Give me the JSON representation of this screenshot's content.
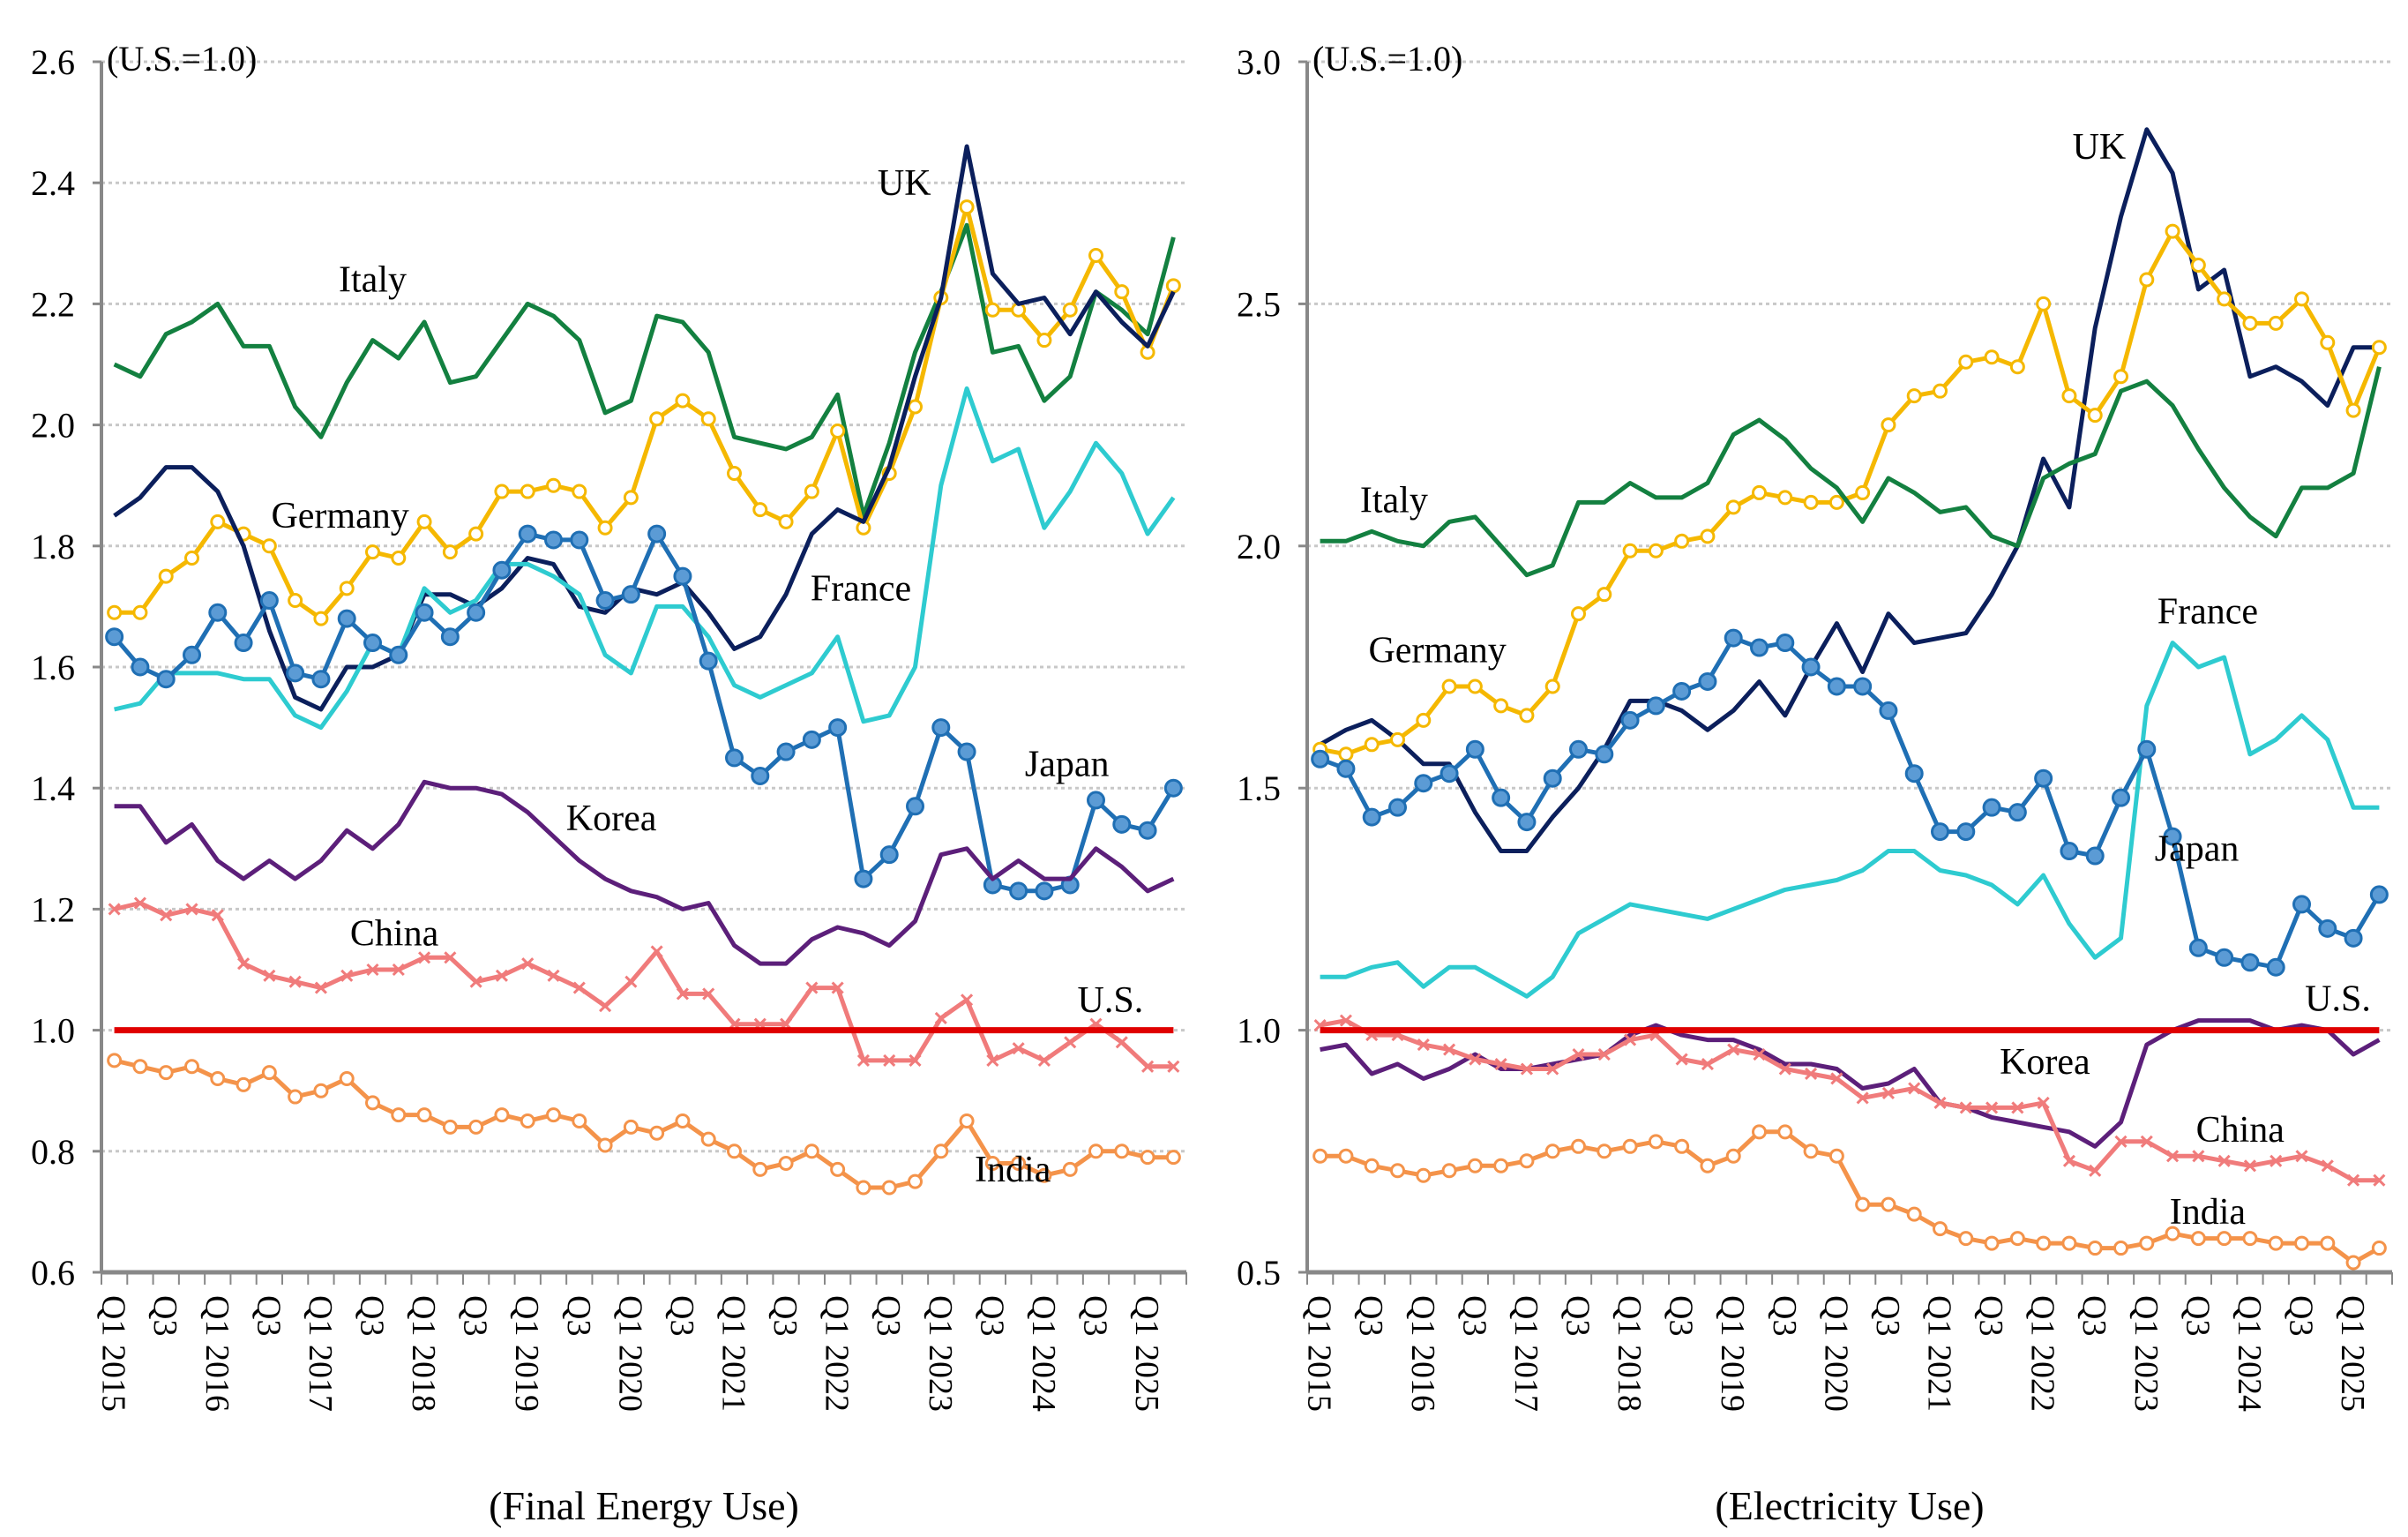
{
  "chart_data": [
    {
      "type": "line",
      "caption": "(Final Energy Use)",
      "unit_note": "(U.S.=1.0)",
      "ylim": [
        0.6,
        2.6
      ],
      "yticks": [
        "0.6",
        "0.8",
        "1.0",
        "1.2",
        "1.4",
        "1.6",
        "1.8",
        "2.0",
        "2.2",
        "2.4",
        "2.6"
      ],
      "grid": true,
      "x_tick_labels": [
        "Q1 2015",
        "Q3",
        "Q1 2016",
        "Q3",
        "Q1 2017",
        "Q3",
        "Q1 2018",
        "Q3",
        "Q1 2019",
        "Q3",
        "Q1 2020",
        "Q3",
        "Q1 2021",
        "Q3",
        "Q1 2022",
        "Q3",
        "Q1 2023",
        "Q3",
        "Q1 2024",
        "Q3",
        "Q1 2025"
      ],
      "n_points": 42,
      "series": [
        {
          "name": "Italy",
          "color": "#138040",
          "marker": "none",
          "label_pos": [
            0.25,
            2.22
          ],
          "values": [
            2.1,
            2.08,
            2.15,
            2.17,
            2.2,
            2.13,
            2.13,
            2.03,
            1.98,
            2.07,
            2.14,
            2.11,
            2.17,
            2.07,
            2.08,
            2.14,
            2.2,
            2.18,
            2.14,
            2.02,
            2.04,
            2.18,
            2.17,
            2.12,
            1.98,
            1.97,
            1.96,
            1.98,
            2.05,
            1.85,
            1.97,
            2.12,
            2.22,
            2.33,
            2.12,
            2.13,
            2.04,
            2.08,
            2.22,
            2.19,
            2.15,
            2.31
          ]
        },
        {
          "name": "Germany",
          "color": "#f5b800",
          "marker": "open",
          "label_pos": [
            0.22,
            1.83
          ],
          "values": [
            1.69,
            1.69,
            1.75,
            1.78,
            1.84,
            1.82,
            1.8,
            1.71,
            1.68,
            1.73,
            1.79,
            1.78,
            1.84,
            1.79,
            1.82,
            1.89,
            1.89,
            1.9,
            1.89,
            1.83,
            1.88,
            2.01,
            2.04,
            2.01,
            1.92,
            1.86,
            1.84,
            1.89,
            1.99,
            1.83,
            1.92,
            2.03,
            2.21,
            2.36,
            2.19,
            2.19,
            2.14,
            2.19,
            2.28,
            2.22,
            2.12,
            2.23
          ]
        },
        {
          "name": "UK",
          "color": "#0b1f5c",
          "marker": "none",
          "label_pos": [
            0.74,
            2.38
          ],
          "values": [
            1.85,
            1.88,
            1.93,
            1.93,
            1.89,
            1.8,
            1.66,
            1.55,
            1.53,
            1.6,
            1.6,
            1.62,
            1.72,
            1.72,
            1.7,
            1.73,
            1.78,
            1.77,
            1.7,
            1.69,
            1.73,
            1.72,
            1.74,
            1.69,
            1.63,
            1.65,
            1.72,
            1.82,
            1.86,
            1.84,
            1.93,
            2.08,
            2.21,
            2.46,
            2.25,
            2.2,
            2.21,
            2.15,
            2.22,
            2.17,
            2.13,
            2.22
          ]
        },
        {
          "name": "France",
          "color": "#2ecbd0",
          "marker": "none",
          "label_pos": [
            0.7,
            1.71
          ],
          "values": [
            1.53,
            1.54,
            1.59,
            1.59,
            1.59,
            1.58,
            1.58,
            1.52,
            1.5,
            1.56,
            1.64,
            1.62,
            1.73,
            1.69,
            1.71,
            1.77,
            1.77,
            1.75,
            1.72,
            1.62,
            1.59,
            1.7,
            1.7,
            1.65,
            1.57,
            1.55,
            1.57,
            1.59,
            1.65,
            1.51,
            1.52,
            1.6,
            1.9,
            2.06,
            1.94,
            1.96,
            1.83,
            1.89,
            1.97,
            1.92,
            1.82,
            1.88
          ]
        },
        {
          "name": "Japan",
          "color": "#1f6fb4",
          "marker": "filled",
          "label_pos": [
            0.89,
            1.42
          ],
          "values": [
            1.65,
            1.6,
            1.58,
            1.62,
            1.69,
            1.64,
            1.71,
            1.59,
            1.58,
            1.68,
            1.64,
            1.62,
            1.69,
            1.65,
            1.69,
            1.76,
            1.82,
            1.81,
            1.81,
            1.71,
            1.72,
            1.82,
            1.75,
            1.61,
            1.45,
            1.42,
            1.46,
            1.48,
            1.5,
            1.25,
            1.29,
            1.37,
            1.5,
            1.46,
            1.24,
            1.23,
            1.23,
            1.24,
            1.38,
            1.34,
            1.33,
            1.4
          ]
        },
        {
          "name": "Korea",
          "color": "#5c1f7a",
          "marker": "none",
          "label_pos": [
            0.47,
            1.33
          ],
          "values": [
            1.37,
            1.37,
            1.31,
            1.34,
            1.28,
            1.25,
            1.28,
            1.25,
            1.28,
            1.33,
            1.3,
            1.34,
            1.41,
            1.4,
            1.4,
            1.39,
            1.36,
            1.32,
            1.28,
            1.25,
            1.23,
            1.22,
            1.2,
            1.21,
            1.14,
            1.11,
            1.11,
            1.15,
            1.17,
            1.16,
            1.14,
            1.18,
            1.29,
            1.3,
            1.25,
            1.28,
            1.25,
            1.25,
            1.3,
            1.27,
            1.23,
            1.25
          ]
        },
        {
          "name": "China",
          "color": "#f07b7b",
          "marker": "x",
          "label_pos": [
            0.27,
            1.14
          ],
          "values": [
            1.2,
            1.21,
            1.19,
            1.2,
            1.19,
            1.11,
            1.09,
            1.08,
            1.07,
            1.09,
            1.1,
            1.1,
            1.12,
            1.12,
            1.08,
            1.09,
            1.11,
            1.09,
            1.07,
            1.04,
            1.08,
            1.13,
            1.06,
            1.06,
            1.01,
            1.01,
            1.01,
            1.07,
            1.07,
            0.95,
            0.95,
            0.95,
            1.02,
            1.05,
            0.95,
            0.97,
            0.95,
            0.98,
            1.01,
            0.98,
            0.94,
            0.94
          ]
        },
        {
          "name": "U.S.",
          "color": "#e00000",
          "marker": "none",
          "label_pos": [
            0.93,
            1.03
          ],
          "values": [
            1,
            1,
            1,
            1,
            1,
            1,
            1,
            1,
            1,
            1,
            1,
            1,
            1,
            1,
            1,
            1,
            1,
            1,
            1,
            1,
            1,
            1,
            1,
            1,
            1,
            1,
            1,
            1,
            1,
            1,
            1,
            1,
            1,
            1,
            1,
            1,
            1,
            1,
            1,
            1,
            1,
            1
          ]
        },
        {
          "name": "India",
          "color": "#f4934a",
          "marker": "open",
          "label_pos": [
            0.84,
            0.75
          ],
          "values": [
            0.95,
            0.94,
            0.93,
            0.94,
            0.92,
            0.91,
            0.93,
            0.89,
            0.9,
            0.92,
            0.88,
            0.86,
            0.86,
            0.84,
            0.84,
            0.86,
            0.85,
            0.86,
            0.85,
            0.81,
            0.84,
            0.83,
            0.85,
            0.82,
            0.8,
            0.77,
            0.78,
            0.8,
            0.77,
            0.74,
            0.74,
            0.75,
            0.8,
            0.85,
            0.78,
            0.78,
            0.76,
            0.77,
            0.8,
            0.8,
            0.79,
            0.79
          ]
        }
      ]
    },
    {
      "type": "line",
      "caption": "(Electricity Use)",
      "unit_note": "(U.S.=1.0)",
      "ylim": [
        0.5,
        3.0
      ],
      "yticks": [
        "0.5",
        "1.0",
        "1.5",
        "2.0",
        "2.5",
        "3.0"
      ],
      "grid": true,
      "x_tick_labels": [
        "Q1 2015",
        "Q3",
        "Q1 2016",
        "Q3",
        "Q1 2017",
        "Q3",
        "Q1 2018",
        "Q3",
        "Q1 2019",
        "Q3",
        "Q1 2020",
        "Q3",
        "Q1 2021",
        "Q3",
        "Q1 2022",
        "Q3",
        "Q1 2023",
        "Q3",
        "Q1 2024",
        "Q3",
        "Q1 2025"
      ],
      "n_points": 42,
      "series": [
        {
          "name": "UK",
          "color": "#0b1f5c",
          "marker": "none",
          "label_pos": [
            0.73,
            2.8
          ],
          "values": [
            1.59,
            1.62,
            1.64,
            1.6,
            1.55,
            1.55,
            1.45,
            1.37,
            1.37,
            1.44,
            1.5,
            1.58,
            1.68,
            1.68,
            1.66,
            1.62,
            1.66,
            1.72,
            1.65,
            1.75,
            1.84,
            1.74,
            1.86,
            1.8,
            1.81,
            1.82,
            1.9,
            2.0,
            2.18,
            2.08,
            2.45,
            2.68,
            2.86,
            2.77,
            2.53,
            2.57,
            2.35,
            2.37,
            2.34,
            2.29,
            2.41,
            2.41
          ]
        },
        {
          "name": "Germany",
          "color": "#f5b800",
          "marker": "open",
          "label_pos": [
            0.12,
            1.76
          ],
          "values": [
            1.58,
            1.57,
            1.59,
            1.6,
            1.64,
            1.71,
            1.71,
            1.67,
            1.65,
            1.71,
            1.86,
            1.9,
            1.99,
            1.99,
            2.01,
            2.02,
            2.08,
            2.11,
            2.1,
            2.09,
            2.09,
            2.11,
            2.25,
            2.31,
            2.32,
            2.38,
            2.39,
            2.37,
            2.5,
            2.31,
            2.27,
            2.35,
            2.55,
            2.65,
            2.58,
            2.51,
            2.46,
            2.46,
            2.51,
            2.42,
            2.28,
            2.41
          ]
        },
        {
          "name": "Italy",
          "color": "#138040",
          "marker": "none",
          "label_pos": [
            0.08,
            2.07
          ],
          "values": [
            2.01,
            2.01,
            2.03,
            2.01,
            2.0,
            2.05,
            2.06,
            2.0,
            1.94,
            1.96,
            2.09,
            2.09,
            2.13,
            2.1,
            2.1,
            2.13,
            2.23,
            2.26,
            2.22,
            2.16,
            2.12,
            2.05,
            2.14,
            2.11,
            2.07,
            2.08,
            2.02,
            2.0,
            2.14,
            2.17,
            2.19,
            2.32,
            2.34,
            2.29,
            2.2,
            2.12,
            2.06,
            2.02,
            2.12,
            2.12,
            2.15,
            2.37
          ]
        },
        {
          "name": "France",
          "color": "#2ecbd0",
          "marker": "none",
          "label_pos": [
            0.83,
            1.84
          ],
          "values": [
            1.11,
            1.11,
            1.13,
            1.14,
            1.09,
            1.13,
            1.13,
            1.1,
            1.07,
            1.11,
            1.2,
            1.23,
            1.26,
            1.25,
            1.24,
            1.23,
            1.25,
            1.27,
            1.29,
            1.3,
            1.31,
            1.33,
            1.37,
            1.37,
            1.33,
            1.32,
            1.3,
            1.26,
            1.32,
            1.22,
            1.15,
            1.19,
            1.67,
            1.8,
            1.75,
            1.77,
            1.57,
            1.6,
            1.65,
            1.6,
            1.46,
            1.46
          ]
        },
        {
          "name": "Japan",
          "color": "#1f6fb4",
          "marker": "filled",
          "label_pos": [
            0.82,
            1.35
          ],
          "values": [
            1.56,
            1.54,
            1.44,
            1.46,
            1.51,
            1.53,
            1.58,
            1.48,
            1.43,
            1.52,
            1.58,
            1.57,
            1.64,
            1.67,
            1.7,
            1.72,
            1.81,
            1.79,
            1.8,
            1.75,
            1.71,
            1.71,
            1.66,
            1.53,
            1.41,
            1.41,
            1.46,
            1.45,
            1.52,
            1.37,
            1.36,
            1.48,
            1.58,
            1.4,
            1.17,
            1.15,
            1.14,
            1.13,
            1.26,
            1.21,
            1.19,
            1.28
          ]
        },
        {
          "name": "Korea",
          "color": "#5c1f7a",
          "marker": "none",
          "label_pos": [
            0.68,
            0.91
          ],
          "values": [
            0.96,
            0.97,
            0.91,
            0.93,
            0.9,
            0.92,
            0.95,
            0.92,
            0.92,
            0.93,
            0.94,
            0.95,
            0.99,
            1.01,
            0.99,
            0.98,
            0.98,
            0.96,
            0.93,
            0.93,
            0.92,
            0.88,
            0.89,
            0.92,
            0.85,
            0.84,
            0.82,
            0.81,
            0.8,
            0.79,
            0.76,
            0.81,
            0.97,
            1.0,
            1.02,
            1.02,
            1.02,
            1.0,
            1.01,
            1.0,
            0.95,
            0.98
          ]
        },
        {
          "name": "China",
          "color": "#f07b7b",
          "marker": "x",
          "label_pos": [
            0.86,
            0.77
          ],
          "values": [
            1.01,
            1.02,
            0.99,
            0.99,
            0.97,
            0.96,
            0.94,
            0.93,
            0.92,
            0.92,
            0.95,
            0.95,
            0.98,
            0.99,
            0.94,
            0.93,
            0.96,
            0.95,
            0.92,
            0.91,
            0.9,
            0.86,
            0.87,
            0.88,
            0.85,
            0.84,
            0.84,
            0.84,
            0.85,
            0.73,
            0.71,
            0.77,
            0.77,
            0.74,
            0.74,
            0.73,
            0.72,
            0.73,
            0.74,
            0.72,
            0.69,
            0.69
          ]
        },
        {
          "name": "U.S.",
          "color": "#e00000",
          "marker": "none",
          "label_pos": [
            0.95,
            1.04
          ],
          "values": [
            1,
            1,
            1,
            1,
            1,
            1,
            1,
            1,
            1,
            1,
            1,
            1,
            1,
            1,
            1,
            1,
            1,
            1,
            1,
            1,
            1,
            1,
            1,
            1,
            1,
            1,
            1,
            1,
            1,
            1,
            1,
            1,
            1,
            1,
            1,
            1,
            1,
            1,
            1,
            1,
            1,
            1
          ]
        },
        {
          "name": "India",
          "color": "#f4934a",
          "marker": "open",
          "label_pos": [
            0.83,
            0.6
          ],
          "values": [
            0.74,
            0.74,
            0.72,
            0.71,
            0.7,
            0.71,
            0.72,
            0.72,
            0.73,
            0.75,
            0.76,
            0.75,
            0.76,
            0.77,
            0.76,
            0.72,
            0.74,
            0.79,
            0.79,
            0.75,
            0.74,
            0.64,
            0.64,
            0.62,
            0.59,
            0.57,
            0.56,
            0.57,
            0.56,
            0.56,
            0.55,
            0.55,
            0.56,
            0.58,
            0.57,
            0.57,
            0.57,
            0.56,
            0.56,
            0.56,
            0.52,
            0.55
          ]
        }
      ]
    }
  ]
}
